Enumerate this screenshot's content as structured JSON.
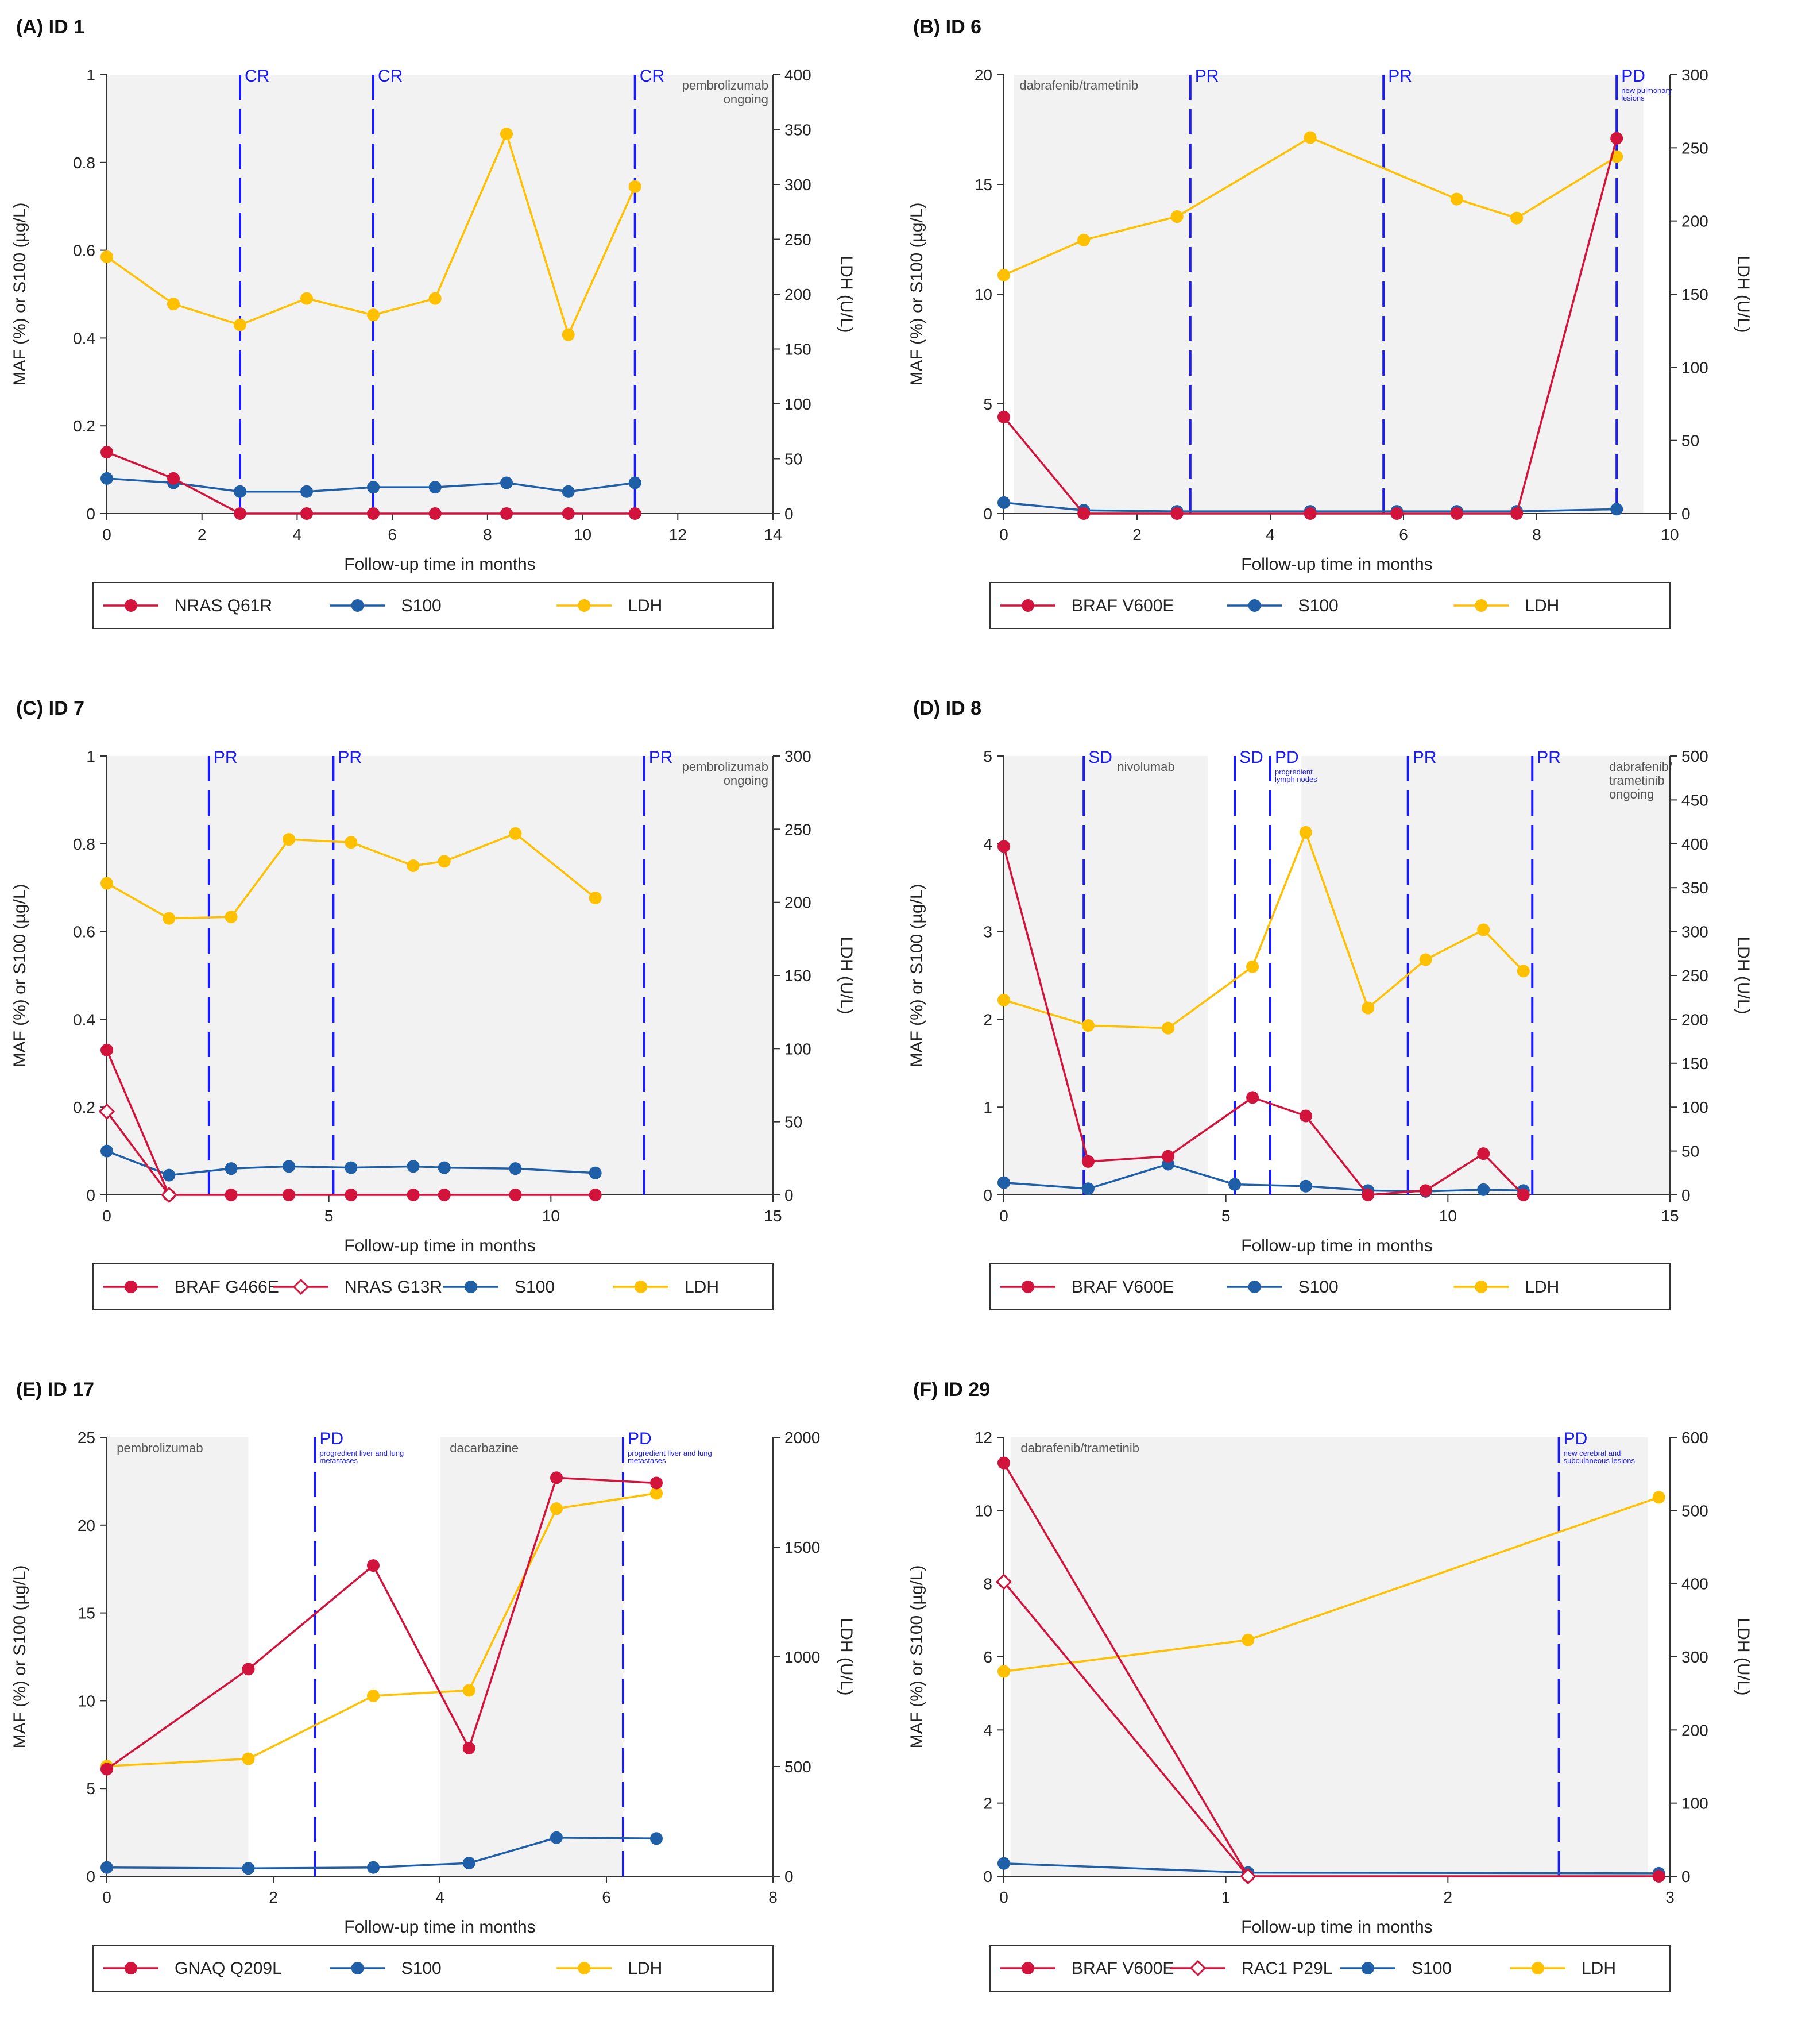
{
  "colors": {
    "red": "#d2133c",
    "blue": "#1f5fa8",
    "gold": "#ffc000",
    "vline": "#1a1aff",
    "shade": "#f2f2f2"
  },
  "xlabel": "Follow-up time in months",
  "ylabel": "MAF (%) or S100 (µg/L)",
  "y2label": "LDH (U/L)",
  "chart_data": [
    {
      "type": "line",
      "title": "(A) ID 1",
      "xlim": [
        0,
        14
      ],
      "xticks": [
        0,
        2,
        4,
        6,
        8,
        10,
        12,
        14
      ],
      "ylim": [
        0,
        1
      ],
      "yticks": [
        0,
        0.2,
        0.4,
        0.6,
        0.8,
        1
      ],
      "y2lim": [
        0,
        400
      ],
      "y2ticks": [
        0,
        50,
        100,
        150,
        200,
        250,
        300,
        350,
        400
      ],
      "shade": [
        [
          0,
          14
        ]
      ],
      "therapy_labels": [
        {
          "x": 14,
          "text": [
            "pembrolizumab",
            "ongoing"
          ],
          "align": "end"
        }
      ],
      "responses": [
        {
          "x": 2.8,
          "label": "CR"
        },
        {
          "x": 5.6,
          "label": "CR"
        },
        {
          "x": 11.1,
          "label": "CR"
        }
      ],
      "series": [
        {
          "name": "NRAS Q61R",
          "color": "red",
          "marker": "filled",
          "axis": "left",
          "x": [
            0,
            1.4,
            2.8,
            4.2,
            5.6,
            6.9,
            8.4,
            9.7,
            11.1
          ],
          "y": [
            0.14,
            0.08,
            0,
            0,
            0,
            0,
            0,
            0,
            0
          ]
        },
        {
          "name": "S100",
          "color": "blue",
          "marker": "filled",
          "axis": "left",
          "x": [
            0,
            1.4,
            2.8,
            4.2,
            5.6,
            6.9,
            8.4,
            9.7,
            11.1
          ],
          "y": [
            0.08,
            0.07,
            0.05,
            0.05,
            0.06,
            0.06,
            0.07,
            0.05,
            0.07
          ]
        },
        {
          "name": "LDH",
          "color": "gold",
          "marker": "filled",
          "axis": "right",
          "x": [
            0,
            1.4,
            2.8,
            4.2,
            5.6,
            6.9,
            8.4,
            9.7,
            11.1
          ],
          "y": [
            234,
            191,
            172,
            196,
            181,
            196,
            346,
            163,
            298
          ]
        }
      ]
    },
    {
      "type": "line",
      "title": "(B) ID 6",
      "xlim": [
        0,
        10
      ],
      "xticks": [
        0,
        2,
        4,
        6,
        8,
        10
      ],
      "ylim": [
        0,
        20
      ],
      "yticks": [
        0,
        5,
        10,
        15,
        20
      ],
      "y2lim": [
        0,
        300
      ],
      "y2ticks": [
        0,
        50,
        100,
        150,
        200,
        250,
        300
      ],
      "shade": [
        [
          0.15,
          9.6
        ]
      ],
      "therapy_labels": [
        {
          "x": 0.15,
          "text": [
            "dabrafenib/trametinib"
          ],
          "align": "start"
        }
      ],
      "responses": [
        {
          "x": 2.8,
          "label": "PR"
        },
        {
          "x": 5.7,
          "label": "PR"
        },
        {
          "x": 9.2,
          "label": "PD",
          "note": [
            "new pulmonary",
            "lesions"
          ]
        }
      ],
      "series": [
        {
          "name": "BRAF V600E",
          "color": "red",
          "marker": "filled",
          "axis": "left",
          "x": [
            0,
            1.2,
            2.6,
            4.6,
            5.9,
            6.8,
            7.7,
            9.2
          ],
          "y": [
            4.4,
            0,
            0,
            0,
            0,
            0,
            0,
            17.1
          ]
        },
        {
          "name": "S100",
          "color": "blue",
          "marker": "filled",
          "axis": "left",
          "x": [
            0,
            1.2,
            2.6,
            4.6,
            5.9,
            6.8,
            7.7,
            9.2
          ],
          "y": [
            0.5,
            0.15,
            0.1,
            0.1,
            0.1,
            0.1,
            0.1,
            0.2
          ]
        },
        {
          "name": "LDH",
          "color": "gold",
          "marker": "filled",
          "axis": "right",
          "x": [
            0,
            1.2,
            2.6,
            4.6,
            6.8,
            7.7,
            9.2
          ],
          "y": [
            163,
            187,
            203,
            257,
            215,
            202,
            244
          ]
        }
      ]
    },
    {
      "type": "line",
      "title": "(C) ID 7",
      "xlim": [
        0,
        15
      ],
      "xticks": [
        0,
        5,
        10,
        15
      ],
      "ylim": [
        0,
        1
      ],
      "yticks": [
        0,
        0.2,
        0.4,
        0.6,
        0.8,
        1
      ],
      "y2lim": [
        0,
        300
      ],
      "y2ticks": [
        0,
        50,
        100,
        150,
        200,
        250,
        300
      ],
      "shade": [
        [
          0,
          15
        ]
      ],
      "therapy_labels": [
        {
          "x": 15,
          "text": [
            "pembrolizumab",
            "ongoing"
          ],
          "align": "end"
        }
      ],
      "responses": [
        {
          "x": 2.3,
          "label": "PR"
        },
        {
          "x": 5.1,
          "label": "PR"
        },
        {
          "x": 12.1,
          "label": "PR"
        }
      ],
      "series": [
        {
          "name": "BRAF G466E",
          "color": "red",
          "marker": "filled",
          "axis": "left",
          "x": [
            0,
            1.4,
            2.8,
            4.1,
            5.5,
            6.9,
            7.6,
            9.2,
            11
          ],
          "y": [
            0.33,
            0,
            0,
            0,
            0,
            0,
            0,
            0,
            0
          ]
        },
        {
          "name": "NRAS G13R",
          "color": "red",
          "marker": "diamond",
          "axis": "left",
          "x": [
            0,
            1.4
          ],
          "y": [
            0.19,
            0
          ]
        },
        {
          "name": "S100",
          "color": "blue",
          "marker": "filled",
          "axis": "left",
          "x": [
            0,
            1.4,
            2.8,
            4.1,
            5.5,
            6.9,
            7.6,
            9.2,
            11
          ],
          "y": [
            0.1,
            0.045,
            0.06,
            0.065,
            0.062,
            0.065,
            0.062,
            0.06,
            0.05
          ]
        },
        {
          "name": "LDH",
          "color": "gold",
          "marker": "filled",
          "axis": "right",
          "x": [
            0,
            1.4,
            2.8,
            4.1,
            5.5,
            6.9,
            7.6,
            9.2,
            11
          ],
          "y": [
            213,
            189,
            190,
            243,
            241,
            225,
            228,
            247,
            203
          ]
        }
      ]
    },
    {
      "type": "line",
      "title": "(D) ID 8",
      "xlim": [
        0,
        15
      ],
      "xticks": [
        0,
        5,
        10,
        15
      ],
      "ylim": [
        0,
        5
      ],
      "yticks": [
        0,
        1,
        2,
        3,
        4,
        5
      ],
      "y2lim": [
        0,
        500
      ],
      "y2ticks": [
        0,
        50,
        100,
        150,
        200,
        250,
        300,
        350,
        400,
        450,
        500
      ],
      "shade": [
        [
          0,
          4.6
        ],
        [
          6.7,
          15
        ]
      ],
      "therapy_labels": [
        {
          "x": 3.2,
          "text": [
            "nivolumab"
          ],
          "align": "middle"
        },
        {
          "x": 13.5,
          "text": [
            "dabrafenib/",
            "trametinib",
            "ongoing"
          ],
          "align": "start"
        }
      ],
      "responses": [
        {
          "x": 1.8,
          "label": "SD"
        },
        {
          "x": 5.2,
          "label": "SD"
        },
        {
          "x": 6.0,
          "label": "PD",
          "note": [
            "progredient",
            "lymph nodes"
          ]
        },
        {
          "x": 9.1,
          "label": "PR"
        },
        {
          "x": 11.9,
          "label": "PR"
        }
      ],
      "series": [
        {
          "name": "BRAF V600E",
          "color": "red",
          "marker": "filled",
          "axis": "left",
          "x": [
            0,
            1.9,
            3.7,
            5.6,
            6.8,
            8.2,
            9.5,
            10.8,
            11.7
          ],
          "y": [
            3.97,
            0.38,
            0.44,
            1.11,
            0.9,
            0,
            0.05,
            0.47,
            0
          ]
        },
        {
          "name": "S100",
          "color": "blue",
          "marker": "filled",
          "axis": "left",
          "x": [
            0,
            1.9,
            3.7,
            5.2,
            6.8,
            8.2,
            9.5,
            10.8,
            11.7
          ],
          "y": [
            0.14,
            0.07,
            0.35,
            0.12,
            0.1,
            0.05,
            0.04,
            0.06,
            0.05
          ]
        },
        {
          "name": "LDH",
          "color": "gold",
          "marker": "filled",
          "axis": "right",
          "x": [
            0,
            1.9,
            3.7,
            5.6,
            6.8,
            8.2,
            9.5,
            10.8,
            11.7
          ],
          "y": [
            222,
            193,
            190,
            260,
            413,
            213,
            268,
            302,
            255
          ]
        }
      ]
    },
    {
      "type": "line",
      "title": "(E) ID 17",
      "xlim": [
        0,
        8
      ],
      "xticks": [
        0,
        2,
        4,
        6,
        8
      ],
      "ylim": [
        0,
        25
      ],
      "yticks": [
        0,
        5,
        10,
        15,
        20,
        25
      ],
      "y2lim": [
        0,
        2000
      ],
      "y2ticks": [
        0,
        500,
        1000,
        1500,
        2000
      ],
      "shade": [
        [
          0,
          1.7
        ],
        [
          4.0,
          6.2
        ]
      ],
      "therapy_labels": [
        {
          "x": 0.05,
          "text": [
            "pembrolizumab"
          ],
          "align": "start"
        },
        {
          "x": 4.05,
          "text": [
            "dacarbazine"
          ],
          "align": "start"
        }
      ],
      "responses": [
        {
          "x": 2.5,
          "label": "PD",
          "note": [
            "progredient liver and lung",
            "metastases"
          ]
        },
        {
          "x": 6.2,
          "label": "PD",
          "note": [
            "progredient liver and lung",
            "metastases"
          ]
        }
      ],
      "series": [
        {
          "name": "GNAQ Q209L",
          "color": "red",
          "marker": "filled",
          "axis": "left",
          "x": [
            0,
            1.7,
            3.2,
            4.35,
            5.4,
            6.6
          ],
          "y": [
            6.1,
            11.8,
            17.7,
            7.3,
            22.7,
            22.4
          ]
        },
        {
          "name": "S100",
          "color": "blue",
          "marker": "filled",
          "axis": "left",
          "x": [
            0,
            1.7,
            3.2,
            4.35,
            5.4,
            6.6
          ],
          "y": [
            0.5,
            0.45,
            0.5,
            0.75,
            2.2,
            2.15
          ]
        },
        {
          "name": "LDH",
          "color": "gold",
          "marker": "filled",
          "axis": "right",
          "x": [
            0,
            1.7,
            3.2,
            4.35,
            5.4,
            6.6
          ],
          "y": [
            502,
            535,
            822,
            847,
            1675,
            1745
          ]
        }
      ]
    },
    {
      "type": "line",
      "title": "(F) ID 29",
      "xlim": [
        0,
        3
      ],
      "xticks": [
        0,
        1,
        2,
        3
      ],
      "ylim": [
        0,
        12
      ],
      "yticks": [
        0,
        2,
        4,
        6,
        8,
        10,
        12
      ],
      "y2lim": [
        0,
        600
      ],
      "y2ticks": [
        0,
        100,
        200,
        300,
        400,
        500,
        600
      ],
      "shade": [
        [
          0.03,
          2.9
        ]
      ],
      "therapy_labels": [
        {
          "x": 0.05,
          "text": [
            "dabrafenib/trametinib"
          ],
          "align": "start"
        }
      ],
      "responses": [
        {
          "x": 2.5,
          "label": "PD",
          "note": [
            "new cerebral and",
            "subculaneous lesions"
          ]
        }
      ],
      "series": [
        {
          "name": "BRAF V600E",
          "color": "red",
          "marker": "filled",
          "axis": "left",
          "x": [
            0,
            1.1,
            2.95
          ],
          "y": [
            11.3,
            0,
            0
          ]
        },
        {
          "name": "RAC1 P29L",
          "color": "red",
          "marker": "diamond",
          "axis": "left",
          "x": [
            0,
            1.1
          ],
          "y": [
            8.05,
            0
          ]
        },
        {
          "name": "S100",
          "color": "blue",
          "marker": "filled",
          "axis": "left",
          "x": [
            0,
            1.1,
            2.95
          ],
          "y": [
            0.35,
            0.1,
            0.08
          ]
        },
        {
          "name": "LDH",
          "color": "gold",
          "marker": "filled",
          "axis": "right",
          "x": [
            0,
            1.1,
            2.95
          ],
          "y": [
            280,
            323,
            518
          ]
        }
      ]
    }
  ]
}
